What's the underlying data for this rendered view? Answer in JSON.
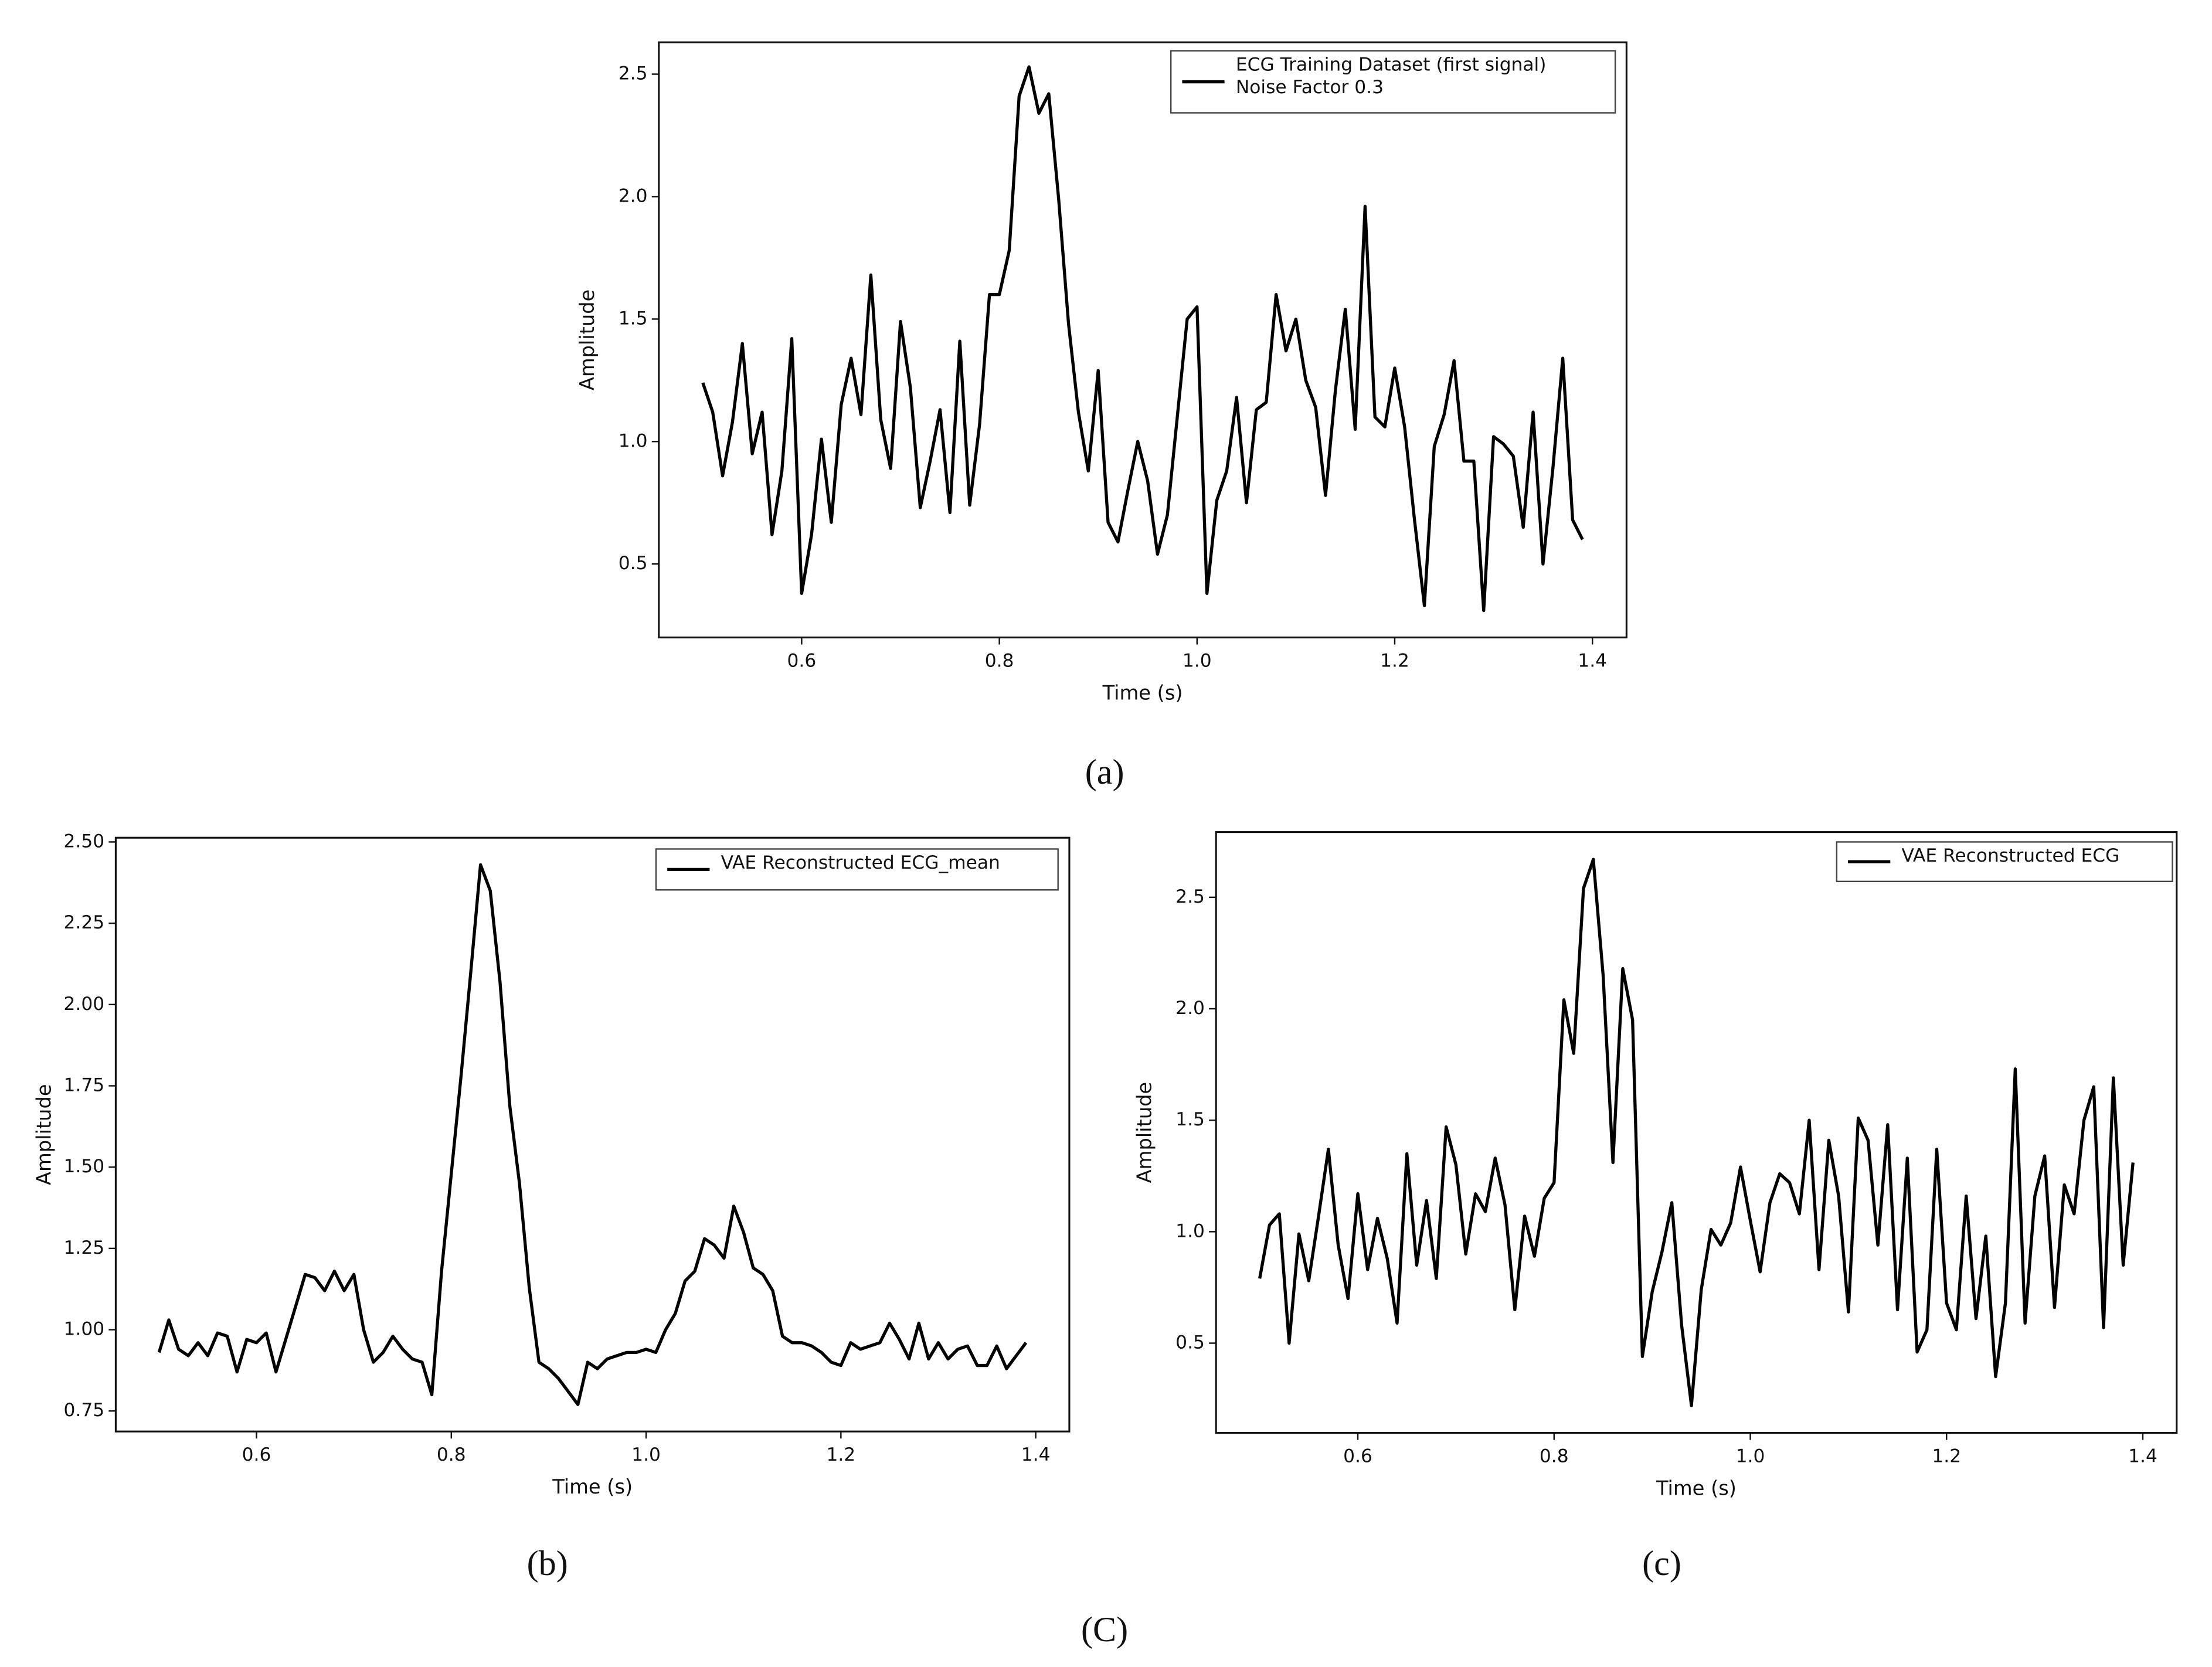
{
  "figure_label": "(C)",
  "chart_data": [
    {
      "type": "line",
      "caption": "(a)",
      "xlabel": "Time (s)",
      "ylabel": "Amplitude",
      "x": [
        0.5,
        0.51,
        0.52,
        0.53,
        0.54,
        0.55,
        0.56,
        0.57,
        0.58,
        0.59,
        0.6,
        0.61,
        0.62,
        0.63,
        0.64,
        0.65,
        0.66,
        0.67,
        0.68,
        0.69,
        0.7,
        0.71,
        0.72,
        0.73,
        0.74,
        0.75,
        0.76,
        0.77,
        0.78,
        0.79,
        0.8,
        0.81,
        0.82,
        0.83,
        0.84,
        0.85,
        0.86,
        0.87,
        0.88,
        0.89,
        0.9,
        0.91,
        0.92,
        0.93,
        0.94,
        0.95,
        0.96,
        0.97,
        0.98,
        0.99,
        1.0,
        1.01,
        1.02,
        1.03,
        1.04,
        1.05,
        1.06,
        1.07,
        1.08,
        1.09,
        1.1,
        1.11,
        1.12,
        1.13,
        1.14,
        1.15,
        1.16,
        1.17,
        1.18,
        1.19,
        1.2,
        1.21,
        1.22,
        1.23,
        1.24,
        1.25,
        1.26,
        1.27,
        1.28,
        1.29,
        1.3,
        1.31,
        1.32,
        1.33,
        1.34,
        1.35,
        1.36,
        1.37,
        1.38,
        1.39
      ],
      "series": [
        {
          "name": "ECG Training Dataset (first signal)\nNoise Factor 0.3",
          "color": "#000000",
          "values": [
            1.24,
            1.12,
            0.86,
            1.08,
            1.4,
            0.95,
            1.12,
            0.62,
            0.88,
            1.42,
            0.38,
            0.62,
            1.01,
            0.67,
            1.15,
            1.34,
            1.11,
            1.68,
            1.09,
            0.89,
            1.49,
            1.22,
            0.73,
            0.92,
            1.13,
            0.71,
            1.41,
            0.74,
            1.07,
            1.6,
            1.6,
            1.78,
            2.41,
            2.53,
            2.34,
            2.42,
            1.99,
            1.48,
            1.12,
            0.88,
            1.29,
            0.67,
            0.59,
            0.8,
            1.0,
            0.84,
            0.54,
            0.7,
            1.1,
            1.5,
            1.55,
            0.38,
            0.76,
            0.88,
            1.18,
            0.75,
            1.13,
            1.16,
            1.6,
            1.37,
            1.5,
            1.25,
            1.14,
            0.78,
            1.21,
            1.54,
            1.05,
            1.96,
            1.1,
            1.06,
            1.3,
            1.06,
            0.68,
            0.33,
            0.98,
            1.11,
            1.33,
            0.92,
            0.92,
            0.31,
            1.02,
            0.99,
            0.94,
            0.65,
            1.12,
            0.5,
            0.89,
            1.34,
            0.68,
            0.6
          ]
        }
      ],
      "xlim": [
        0.4555,
        1.4345
      ],
      "xticks": [
        0.6,
        0.8,
        {
          "value": 1.0,
          "label": "1.0"
        },
        1.2,
        1.4
      ],
      "ylim": [
        0.2,
        2.63
      ],
      "yticks": [
        0.5,
        {
          "value": 1.0,
          "label": "1.0"
        },
        1.5,
        {
          "value": 2.0,
          "label": "2.0"
        },
        2.5
      ],
      "grid": false,
      "legend": "upper right"
    },
    {
      "type": "line",
      "caption": "(b)",
      "xlabel": "Time (s)",
      "ylabel": "Amplitude",
      "x": [
        0.5,
        0.51,
        0.52,
        0.53,
        0.54,
        0.55,
        0.56,
        0.57,
        0.58,
        0.59,
        0.6,
        0.61,
        0.62,
        0.63,
        0.64,
        0.65,
        0.66,
        0.67,
        0.68,
        0.69,
        0.7,
        0.71,
        0.72,
        0.73,
        0.74,
        0.75,
        0.76,
        0.77,
        0.78,
        0.79,
        0.8,
        0.81,
        0.82,
        0.83,
        0.84,
        0.85,
        0.86,
        0.87,
        0.88,
        0.89,
        0.9,
        0.91,
        0.92,
        0.93,
        0.94,
        0.95,
        0.96,
        0.97,
        0.98,
        0.99,
        1.0,
        1.01,
        1.02,
        1.03,
        1.04,
        1.05,
        1.06,
        1.07,
        1.08,
        1.09,
        1.1,
        1.11,
        1.12,
        1.13,
        1.14,
        1.15,
        1.16,
        1.17,
        1.18,
        1.19,
        1.2,
        1.21,
        1.22,
        1.23,
        1.24,
        1.25,
        1.26,
        1.27,
        1.28,
        1.29,
        1.3,
        1.31,
        1.32,
        1.33,
        1.34,
        1.35,
        1.36,
        1.37,
        1.38,
        1.39
      ],
      "series": [
        {
          "name": "VAE Reconstructed ECG_mean",
          "color": "#000000",
          "values": [
            0.93,
            1.03,
            0.94,
            0.92,
            0.96,
            0.92,
            0.99,
            0.98,
            0.87,
            0.97,
            0.96,
            0.99,
            0.87,
            0.97,
            1.07,
            1.17,
            1.16,
            1.12,
            1.18,
            1.12,
            1.17,
            1.0,
            0.9,
            0.93,
            0.98,
            0.94,
            0.91,
            0.9,
            0.8,
            1.18,
            1.48,
            1.78,
            2.1,
            2.43,
            2.35,
            2.07,
            1.69,
            1.45,
            1.13,
            0.9,
            0.88,
            0.85,
            0.81,
            0.77,
            0.9,
            0.88,
            0.91,
            0.92,
            0.93,
            0.93,
            0.94,
            0.93,
            1.0,
            1.05,
            1.15,
            1.18,
            1.28,
            1.26,
            1.22,
            1.38,
            1.3,
            1.19,
            1.17,
            1.12,
            0.98,
            0.96,
            0.96,
            0.95,
            0.93,
            0.9,
            0.89,
            0.96,
            0.94,
            0.95,
            0.96,
            1.02,
            0.97,
            0.91,
            1.02,
            0.91,
            0.96,
            0.91,
            0.94,
            0.95,
            0.89,
            0.89,
            0.95,
            0.88,
            0.92,
            0.96
          ]
        }
      ],
      "xlim": [
        0.4555,
        1.4345
      ],
      "xticks": [
        0.6,
        0.8,
        {
          "value": 1.0,
          "label": "1.0"
        },
        1.2,
        1.4
      ],
      "ylim": [
        0.687,
        2.513
      ],
      "yticks": [
        0.75,
        {
          "value": 1.0,
          "label": "1.00"
        },
        1.25,
        {
          "value": 1.5,
          "label": "1.50"
        },
        1.75,
        {
          "value": 2.0,
          "label": "2.00"
        },
        2.25,
        {
          "value": 2.5,
          "label": "2.50"
        }
      ],
      "grid": false,
      "legend": "upper right"
    },
    {
      "type": "line",
      "caption": "(c)",
      "xlabel": "Time (s)",
      "ylabel": "Amplitude",
      "x": [
        0.5,
        0.51,
        0.52,
        0.53,
        0.54,
        0.55,
        0.56,
        0.57,
        0.58,
        0.59,
        0.6,
        0.61,
        0.62,
        0.63,
        0.64,
        0.65,
        0.66,
        0.67,
        0.68,
        0.69,
        0.7,
        0.71,
        0.72,
        0.73,
        0.74,
        0.75,
        0.76,
        0.77,
        0.78,
        0.79,
        0.8,
        0.81,
        0.82,
        0.83,
        0.84,
        0.85,
        0.86,
        0.87,
        0.88,
        0.89,
        0.9,
        0.91,
        0.92,
        0.93,
        0.94,
        0.95,
        0.96,
        0.97,
        0.98,
        0.99,
        1.0,
        1.01,
        1.02,
        1.03,
        1.04,
        1.05,
        1.06,
        1.07,
        1.08,
        1.09,
        1.1,
        1.11,
        1.12,
        1.13,
        1.14,
        1.15,
        1.16,
        1.17,
        1.18,
        1.19,
        1.2,
        1.21,
        1.22,
        1.23,
        1.24,
        1.25,
        1.26,
        1.27,
        1.28,
        1.29,
        1.3,
        1.31,
        1.32,
        1.33,
        1.34,
        1.35,
        1.36,
        1.37,
        1.38,
        1.39
      ],
      "series": [
        {
          "name": "VAE Reconstructed ECG",
          "color": "#000000",
          "values": [
            0.79,
            1.03,
            1.08,
            0.5,
            0.99,
            0.78,
            1.07,
            1.37,
            0.94,
            0.7,
            1.17,
            0.83,
            1.06,
            0.88,
            0.59,
            1.35,
            0.85,
            1.14,
            0.79,
            1.47,
            1.3,
            0.9,
            1.17,
            1.09,
            1.33,
            1.12,
            0.65,
            1.07,
            0.89,
            1.15,
            1.22,
            2.04,
            1.8,
            2.54,
            2.67,
            2.15,
            1.31,
            2.18,
            1.95,
            0.44,
            0.73,
            0.91,
            1.13,
            0.58,
            0.22,
            0.74,
            1.01,
            0.94,
            1.04,
            1.29,
            1.05,
            0.82,
            1.13,
            1.26,
            1.22,
            1.08,
            1.5,
            0.83,
            1.41,
            1.16,
            0.64,
            1.51,
            1.41,
            0.94,
            1.48,
            0.65,
            1.33,
            0.46,
            0.56,
            1.37,
            0.68,
            0.56,
            1.16,
            0.61,
            0.98,
            0.35,
            0.68,
            1.73,
            0.59,
            1.16,
            1.34,
            0.66,
            1.21,
            1.08,
            1.5,
            1.65,
            0.57,
            1.69,
            0.85,
            1.31
          ]
        }
      ],
      "xlim": [
        0.4555,
        1.4345
      ],
      "xticks": [
        0.6,
        0.8,
        {
          "value": 1.0,
          "label": "1.0"
        },
        1.2,
        1.4
      ],
      "ylim": [
        0.0975,
        2.7925
      ],
      "yticks": [
        0.5,
        {
          "value": 1.0,
          "label": "1.0"
        },
        1.5,
        {
          "value": 2.0,
          "label": "2.0"
        },
        2.5
      ],
      "grid": false,
      "legend": "upper right"
    }
  ]
}
